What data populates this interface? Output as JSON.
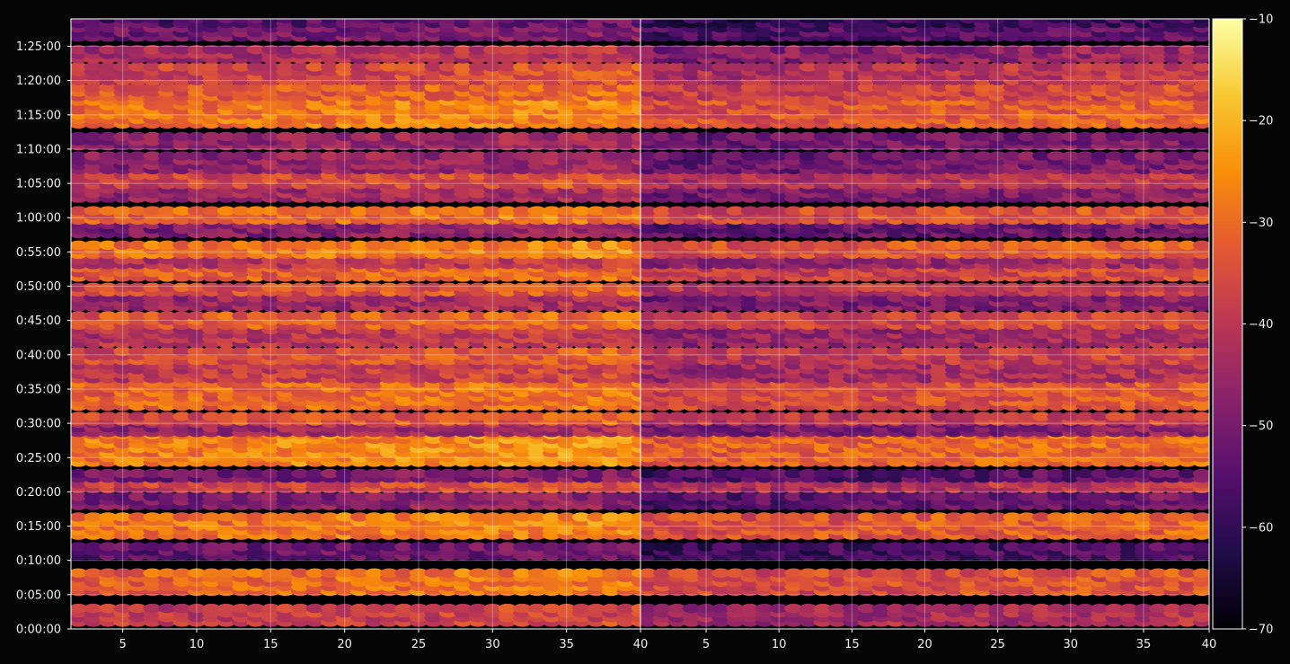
{
  "chart_data": {
    "type": "heatmap",
    "title": "",
    "xlabel": "",
    "ylabel": "",
    "panels": [
      {
        "name": "",
        "x_range": [
          1.5,
          40
        ],
        "x_ticks": [
          5,
          10,
          15,
          20,
          25,
          30,
          35,
          40
        ]
      },
      {
        "name": "",
        "x_range": [
          0.5,
          39.5
        ],
        "x_ticks": [
          5,
          10,
          15,
          20,
          25,
          30,
          35,
          40
        ]
      }
    ],
    "y_range_seconds": [
      0,
      5340
    ],
    "y_ticks": [
      {
        "value": 0,
        "label": "0:00:00"
      },
      {
        "value": 300,
        "label": "0:05:00"
      },
      {
        "value": 600,
        "label": "0:10:00"
      },
      {
        "value": 900,
        "label": "0:15:00"
      },
      {
        "value": 1200,
        "label": "0:20:00"
      },
      {
        "value": 1500,
        "label": "0:25:00"
      },
      {
        "value": 1800,
        "label": "0:30:00"
      },
      {
        "value": 2100,
        "label": "0:35:00"
      },
      {
        "value": 2400,
        "label": "0:40:00"
      },
      {
        "value": 2700,
        "label": "0:45:00"
      },
      {
        "value": 3000,
        "label": "0:50:00"
      },
      {
        "value": 3300,
        "label": "0:55:00"
      },
      {
        "value": 3600,
        "label": "1:00:00"
      },
      {
        "value": 3900,
        "label": "1:05:00"
      },
      {
        "value": 4200,
        "label": "1:10:00"
      },
      {
        "value": 4500,
        "label": "1:15:00"
      },
      {
        "value": 4800,
        "label": "1:20:00"
      },
      {
        "value": 5100,
        "label": "1:25:00"
      }
    ],
    "colorbar": {
      "colormap": "inferno",
      "range": [
        -70,
        -10
      ],
      "ticks": [
        {
          "value": -10,
          "label": "−10"
        },
        {
          "value": -20,
          "label": "−20"
        },
        {
          "value": -30,
          "label": "−30"
        },
        {
          "value": -40,
          "label": "−40"
        },
        {
          "value": -50,
          "label": "−50"
        },
        {
          "value": -60,
          "label": "−60"
        },
        {
          "value": -70,
          "label": "−70"
        }
      ]
    },
    "bands": [
      {
        "t_start": 40,
        "t_end": 200,
        "level": -38
      },
      {
        "t_start": 310,
        "t_end": 480,
        "level": -30
      },
      {
        "t_start": 620,
        "t_end": 730,
        "level": -52
      },
      {
        "t_start": 800,
        "t_end": 990,
        "level": -28
      },
      {
        "t_start": 1060,
        "t_end": 1170,
        "level": -48
      },
      {
        "t_start": 1210,
        "t_end": 1260,
        "level": -36
      },
      {
        "t_start": 1300,
        "t_end": 1380,
        "level": -50
      },
      {
        "t_start": 1440,
        "t_end": 1690,
        "level": -26
      },
      {
        "t_start": 1700,
        "t_end": 1790,
        "level": -44
      },
      {
        "t_start": 1800,
        "t_end": 1880,
        "level": -34
      },
      {
        "t_start": 1930,
        "t_end": 2140,
        "level": -30
      },
      {
        "t_start": 2170,
        "t_end": 2300,
        "level": -38
      },
      {
        "t_start": 2330,
        "t_end": 2430,
        "level": -34
      },
      {
        "t_start": 2480,
        "t_end": 2620,
        "level": -40
      },
      {
        "t_start": 2640,
        "t_end": 2760,
        "level": -32
      },
      {
        "t_start": 2800,
        "t_end": 2900,
        "level": -44
      },
      {
        "t_start": 2930,
        "t_end": 3000,
        "level": -34
      },
      {
        "t_start": 3060,
        "t_end": 3160,
        "level": -32
      },
      {
        "t_start": 3170,
        "t_end": 3240,
        "level": -40
      },
      {
        "t_start": 3260,
        "t_end": 3370,
        "level": -28
      },
      {
        "t_start": 3440,
        "t_end": 3550,
        "level": -48
      },
      {
        "t_start": 3560,
        "t_end": 3680,
        "level": -30
      },
      {
        "t_start": 3750,
        "t_end": 3850,
        "level": -44
      },
      {
        "t_start": 3870,
        "t_end": 3980,
        "level": -36
      },
      {
        "t_start": 4000,
        "t_end": 4150,
        "level": -46
      },
      {
        "t_start": 4210,
        "t_end": 4330,
        "level": -46
      },
      {
        "t_start": 4400,
        "t_end": 4610,
        "level": -28
      },
      {
        "t_start": 4640,
        "t_end": 4760,
        "level": -32
      },
      {
        "t_start": 4780,
        "t_end": 4920,
        "level": -36
      },
      {
        "t_start": 4970,
        "t_end": 5080,
        "level": -42
      },
      {
        "t_start": 5160,
        "t_end": 5260,
        "level": -50
      },
      {
        "t_start": 5280,
        "t_end": 5340,
        "level": -54
      }
    ]
  }
}
